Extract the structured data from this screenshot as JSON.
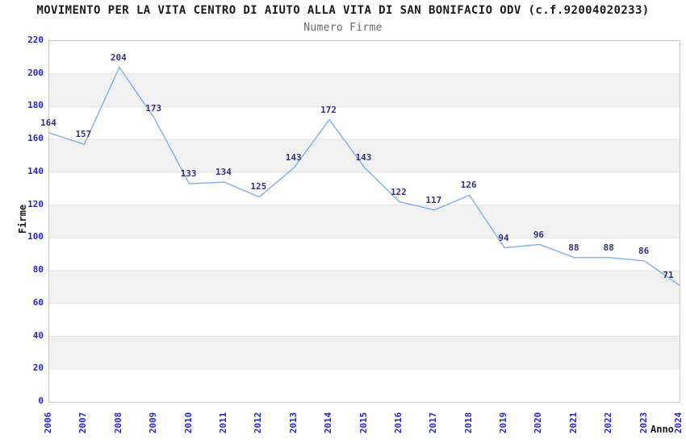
{
  "header": {
    "title": "MOVIMENTO PER LA VITA CENTRO DI AIUTO ALLA VITA DI SAN BONIFACIO ODV (c.f.92004020233)",
    "subtitle": "Numero Firme"
  },
  "chart_data": {
    "type": "line",
    "title": "MOVIMENTO PER LA VITA CENTRO DI AIUTO ALLA VITA DI SAN BONIFACIO ODV (c.f.92004020233)",
    "subtitle": "Numero Firme",
    "xlabel": "Anno",
    "ylabel": "Firme",
    "categories": [
      "2006",
      "2007",
      "2008",
      "2009",
      "2010",
      "2011",
      "2012",
      "2013",
      "2014",
      "2015",
      "2016",
      "2017",
      "2018",
      "2019",
      "2020",
      "2021",
      "2022",
      "2023",
      "2024"
    ],
    "values": [
      164,
      157,
      204,
      173,
      133,
      134,
      125,
      143,
      172,
      143,
      122,
      117,
      126,
      94,
      96,
      88,
      88,
      86,
      71
    ],
    "ylim": [
      0,
      220
    ],
    "ytick_step": 20,
    "grid": "horizontal gridlines with alternating gray bands",
    "legend_position": "none",
    "data_labels_shown": true,
    "colors": {
      "line": "#7fb0e8",
      "tick_label": "#2424cc",
      "data_label": "#32327e",
      "band_gray": "#f1f1f1",
      "gridline": "#e3e3e3",
      "plot_border": "#c9c9c9",
      "title_text": "#1a1a1a",
      "subtitle_text": "#666666"
    }
  }
}
